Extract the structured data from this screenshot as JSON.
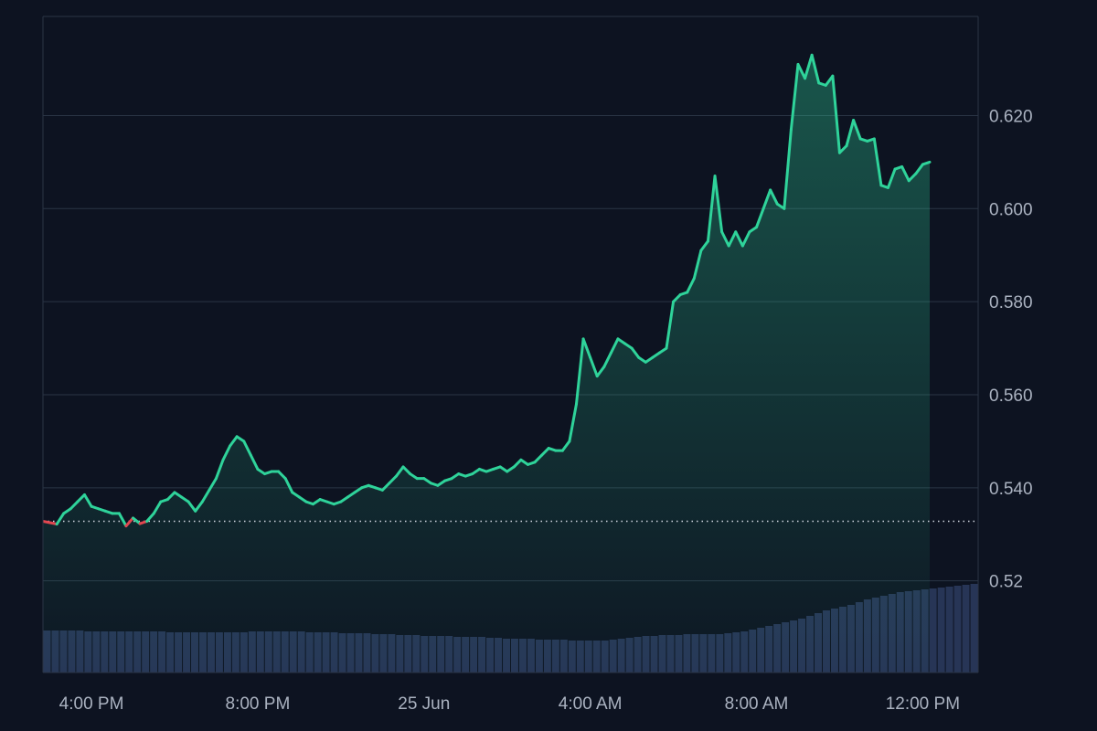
{
  "colors": {
    "background": "#0d1321",
    "grid": "#2a3445",
    "up_line": "#2fd39a",
    "down_line": "#e2464f",
    "volume": "#273556",
    "tick_text": "#aab2c0",
    "baseline_dots": "#cfd5df"
  },
  "chart_data": {
    "type": "area",
    "title": "",
    "xlabel": "",
    "ylabel": "",
    "x_ticks": [
      "4:00 PM",
      "8:00 PM",
      "25 Jun",
      "4:00 AM",
      "8:00 AM",
      "12:00 PM"
    ],
    "y_ticks": [
      "0.52",
      "0.540",
      "0.560",
      "0.580",
      "0.600",
      "0.620"
    ],
    "y_tick_values": [
      0.52,
      0.54,
      0.56,
      0.58,
      0.6,
      0.62
    ],
    "ylim": [
      0.5003,
      0.6413
    ],
    "x_time_range": [
      "24 Jun 2:50 PM",
      "25 Jun 1:20 PM"
    ],
    "baseline": 0.5328,
    "grid": true,
    "series": [
      {
        "points": [
          [
            "24 Jun 2:50 PM",
            0.5328
          ],
          [
            "24 Jun 3:00 PM",
            0.5325
          ],
          [
            "24 Jun 3:10 PM",
            0.5322
          ],
          [
            "24 Jun 3:20 PM",
            0.5345
          ],
          [
            "24 Jun 3:30 PM",
            0.5355
          ],
          [
            "24 Jun 3:40 PM",
            0.537
          ],
          [
            "24 Jun 3:50 PM",
            0.5385
          ],
          [
            "24 Jun 4:00 PM",
            0.536
          ],
          [
            "24 Jun 4:10 PM",
            0.5355
          ],
          [
            "24 Jun 4:20 PM",
            0.535
          ],
          [
            "24 Jun 4:30 PM",
            0.5345
          ],
          [
            "24 Jun 4:40 PM",
            0.5345
          ],
          [
            "24 Jun 4:50 PM",
            0.5318
          ],
          [
            "24 Jun 5:00 PM",
            0.5335
          ],
          [
            "24 Jun 5:10 PM",
            0.5323
          ],
          [
            "24 Jun 5:20 PM",
            0.5328
          ],
          [
            "24 Jun 5:30 PM",
            0.5345
          ],
          [
            "24 Jun 5:40 PM",
            0.537
          ],
          [
            "24 Jun 5:50 PM",
            0.5375
          ],
          [
            "24 Jun 6:00 PM",
            0.539
          ],
          [
            "24 Jun 6:10 PM",
            0.538
          ],
          [
            "24 Jun 6:20 PM",
            0.537
          ],
          [
            "24 Jun 6:30 PM",
            0.535
          ],
          [
            "24 Jun 6:40 PM",
            0.537
          ],
          [
            "24 Jun 6:50 PM",
            0.5395
          ],
          [
            "24 Jun 7:00 PM",
            0.542
          ],
          [
            "24 Jun 7:10 PM",
            0.546
          ],
          [
            "24 Jun 7:20 PM",
            0.549
          ],
          [
            "24 Jun 7:30 PM",
            0.551
          ],
          [
            "24 Jun 7:40 PM",
            0.55
          ],
          [
            "24 Jun 7:50 PM",
            0.547
          ],
          [
            "24 Jun 8:00 PM",
            0.544
          ],
          [
            "24 Jun 8:10 PM",
            0.543
          ],
          [
            "24 Jun 8:20 PM",
            0.5435
          ],
          [
            "24 Jun 8:30 PM",
            0.5435
          ],
          [
            "24 Jun 8:40 PM",
            0.542
          ],
          [
            "24 Jun 8:50 PM",
            0.539
          ],
          [
            "24 Jun 9:00 PM",
            0.538
          ],
          [
            "24 Jun 9:10 PM",
            0.537
          ],
          [
            "24 Jun 9:20 PM",
            0.5365
          ],
          [
            "24 Jun 9:30 PM",
            0.5375
          ],
          [
            "24 Jun 9:40 PM",
            0.537
          ],
          [
            "24 Jun 9:50 PM",
            0.5365
          ],
          [
            "24 Jun 10:00 PM",
            0.537
          ],
          [
            "24 Jun 10:10 PM",
            0.538
          ],
          [
            "24 Jun 10:20 PM",
            0.539
          ],
          [
            "24 Jun 10:30 PM",
            0.54
          ],
          [
            "24 Jun 10:40 PM",
            0.5405
          ],
          [
            "24 Jun 10:50 PM",
            0.54
          ],
          [
            "24 Jun 11:00 PM",
            0.5395
          ],
          [
            "24 Jun 11:10 PM",
            0.541
          ],
          [
            "24 Jun 11:20 PM",
            0.5425
          ],
          [
            "24 Jun 11:30 PM",
            0.5445
          ],
          [
            "24 Jun 11:40 PM",
            0.543
          ],
          [
            "24 Jun 11:50 PM",
            0.542
          ],
          [
            "25 Jun 12:00 AM",
            0.542
          ],
          [
            "25 Jun 12:10 AM",
            0.541
          ],
          [
            "25 Jun 12:20 AM",
            0.5405
          ],
          [
            "25 Jun 12:30 AM",
            0.5415
          ],
          [
            "25 Jun 12:40 AM",
            0.542
          ],
          [
            "25 Jun 12:50 AM",
            0.543
          ],
          [
            "25 Jun 1:00 AM",
            0.5425
          ],
          [
            "25 Jun 1:10 AM",
            0.543
          ],
          [
            "25 Jun 1:20 AM",
            0.544
          ],
          [
            "25 Jun 1:30 AM",
            0.5435
          ],
          [
            "25 Jun 1:40 AM",
            0.544
          ],
          [
            "25 Jun 1:50 AM",
            0.5445
          ],
          [
            "25 Jun 2:00 AM",
            0.5435
          ],
          [
            "25 Jun 2:10 AM",
            0.5445
          ],
          [
            "25 Jun 2:20 AM",
            0.546
          ],
          [
            "25 Jun 2:30 AM",
            0.545
          ],
          [
            "25 Jun 2:40 AM",
            0.5455
          ],
          [
            "25 Jun 2:50 AM",
            0.547
          ],
          [
            "25 Jun 3:00 AM",
            0.5485
          ],
          [
            "25 Jun 3:10 AM",
            0.548
          ],
          [
            "25 Jun 3:20 AM",
            0.548
          ],
          [
            "25 Jun 3:30 AM",
            0.55
          ],
          [
            "25 Jun 3:40 AM",
            0.558
          ],
          [
            "25 Jun 3:50 AM",
            0.572
          ],
          [
            "25 Jun 4:00 AM",
            0.568
          ],
          [
            "25 Jun 4:10 AM",
            0.564
          ],
          [
            "25 Jun 4:20 AM",
            0.566
          ],
          [
            "25 Jun 4:30 AM",
            0.569
          ],
          [
            "25 Jun 4:40 AM",
            0.572
          ],
          [
            "25 Jun 4:50 AM",
            0.571
          ],
          [
            "25 Jun 5:00 AM",
            0.57
          ],
          [
            "25 Jun 5:10 AM",
            0.568
          ],
          [
            "25 Jun 5:20 AM",
            0.567
          ],
          [
            "25 Jun 5:30 AM",
            0.568
          ],
          [
            "25 Jun 5:40 AM",
            0.569
          ],
          [
            "25 Jun 5:50 AM",
            0.57
          ],
          [
            "25 Jun 6:00 AM",
            0.58
          ],
          [
            "25 Jun 6:10 AM",
            0.5815
          ],
          [
            "25 Jun 6:20 AM",
            0.582
          ],
          [
            "25 Jun 6:30 AM",
            0.585
          ],
          [
            "25 Jun 6:40 AM",
            0.591
          ],
          [
            "25 Jun 6:50 AM",
            0.593
          ],
          [
            "25 Jun 7:00 AM",
            0.607
          ],
          [
            "25 Jun 7:10 AM",
            0.595
          ],
          [
            "25 Jun 7:20 AM",
            0.592
          ],
          [
            "25 Jun 7:30 AM",
            0.595
          ],
          [
            "25 Jun 7:40 AM",
            0.592
          ],
          [
            "25 Jun 7:50 AM",
            0.595
          ],
          [
            "25 Jun 8:00 AM",
            0.596
          ],
          [
            "25 Jun 8:10 AM",
            0.6
          ],
          [
            "25 Jun 8:20 AM",
            0.604
          ],
          [
            "25 Jun 8:30 AM",
            0.601
          ],
          [
            "25 Jun 8:40 AM",
            0.6
          ],
          [
            "25 Jun 8:50 AM",
            0.617
          ],
          [
            "25 Jun 9:00 AM",
            0.631
          ],
          [
            "25 Jun 9:10 AM",
            0.628
          ],
          [
            "25 Jun 9:20 AM",
            0.633
          ],
          [
            "25 Jun 9:30 AM",
            0.627
          ],
          [
            "25 Jun 9:40 AM",
            0.6265
          ],
          [
            "25 Jun 9:50 AM",
            0.6285
          ],
          [
            "25 Jun 10:00 AM",
            0.612
          ],
          [
            "25 Jun 10:10 AM",
            0.6135
          ],
          [
            "25 Jun 10:20 AM",
            0.619
          ],
          [
            "25 Jun 10:30 AM",
            0.615
          ],
          [
            "25 Jun 10:40 AM",
            0.6145
          ],
          [
            "25 Jun 10:50 AM",
            0.615
          ],
          [
            "25 Jun 11:00 AM",
            0.605
          ],
          [
            "25 Jun 11:10 AM",
            0.6045
          ],
          [
            "25 Jun 11:20 AM",
            0.6085
          ],
          [
            "25 Jun 11:30 AM",
            0.609
          ],
          [
            "25 Jun 11:40 AM",
            0.606
          ],
          [
            "25 Jun 11:50 AM",
            0.6075
          ],
          [
            "25 Jun 12:00 PM",
            0.6095
          ],
          [
            "25 Jun 12:10 PM",
            0.61
          ]
        ]
      }
    ],
    "volume_relative": [
      0.46,
      0.46,
      0.46,
      0.46,
      0.46,
      0.45,
      0.45,
      0.45,
      0.45,
      0.45,
      0.45,
      0.45,
      0.45,
      0.45,
      0.45,
      0.44,
      0.44,
      0.44,
      0.44,
      0.44,
      0.44,
      0.44,
      0.44,
      0.44,
      0.44,
      0.45,
      0.45,
      0.45,
      0.45,
      0.45,
      0.45,
      0.45,
      0.44,
      0.44,
      0.44,
      0.44,
      0.43,
      0.43,
      0.43,
      0.43,
      0.42,
      0.42,
      0.42,
      0.41,
      0.41,
      0.41,
      0.4,
      0.4,
      0.4,
      0.4,
      0.39,
      0.39,
      0.39,
      0.39,
      0.38,
      0.38,
      0.37,
      0.37,
      0.37,
      0.37,
      0.36,
      0.36,
      0.36,
      0.36,
      0.35,
      0.35,
      0.35,
      0.35,
      0.35,
      0.36,
      0.37,
      0.38,
      0.39,
      0.4,
      0.4,
      0.41,
      0.41,
      0.41,
      0.42,
      0.42,
      0.42,
      0.42,
      0.42,
      0.43,
      0.44,
      0.45,
      0.47,
      0.49,
      0.51,
      0.53,
      0.55,
      0.57,
      0.59,
      0.62,
      0.65,
      0.68,
      0.7,
      0.72,
      0.74,
      0.77,
      0.8,
      0.82,
      0.84,
      0.86,
      0.88,
      0.89,
      0.9,
      0.91,
      0.92,
      0.93,
      0.94,
      0.95,
      0.96,
      0.97
    ]
  }
}
